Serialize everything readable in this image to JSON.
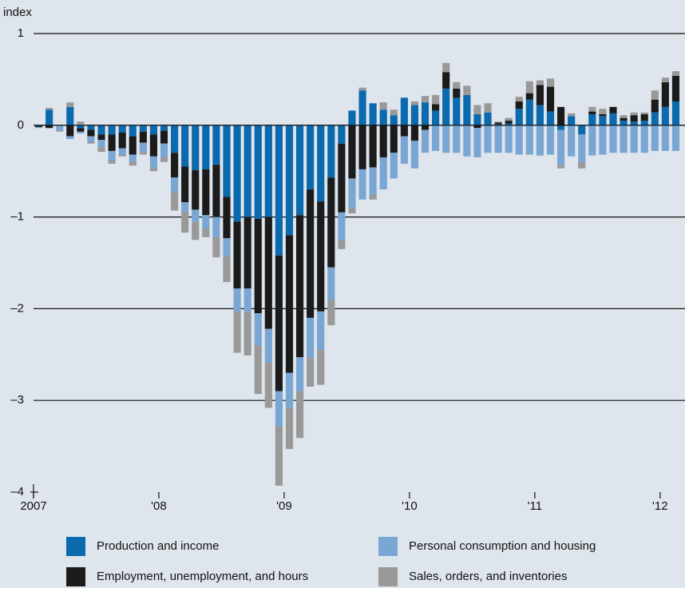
{
  "chart_data": {
    "type": "bar",
    "stacked": true,
    "y_axis_label": "index",
    "categories": [
      "2007",
      null,
      null,
      null,
      null,
      null,
      null,
      null,
      null,
      null,
      null,
      null,
      "'08",
      null,
      null,
      null,
      null,
      null,
      null,
      null,
      null,
      null,
      null,
      null,
      "'09",
      null,
      null,
      null,
      null,
      null,
      null,
      null,
      null,
      null,
      null,
      null,
      "'10",
      null,
      null,
      null,
      null,
      null,
      null,
      null,
      null,
      null,
      null,
      null,
      "'11",
      null,
      null,
      null,
      null,
      null,
      null,
      null,
      null,
      null,
      null,
      null,
      "'12",
      null
    ],
    "series": [
      {
        "name": "Production and income",
        "color": "#0a6aad",
        "values": [
          -0.01,
          0.17,
          0,
          0.2,
          -0.03,
          -0.05,
          -0.1,
          -0.1,
          -0.08,
          -0.12,
          -0.07,
          -0.1,
          -0.06,
          -0.3,
          -0.45,
          -0.49,
          -0.48,
          -0.43,
          -0.78,
          -1.05,
          -1.0,
          -1.02,
          -1.0,
          -1.42,
          -1.2,
          -0.98,
          -0.7,
          -0.83,
          -0.57,
          -0.2,
          0.16,
          0.38,
          0.24,
          0.17,
          0.11,
          0.3,
          0.22,
          0.25,
          0.16,
          0.4,
          0.3,
          0.33,
          0.12,
          0.14,
          0.01,
          0.02,
          0.18,
          0.28,
          0.22,
          0.15,
          -0.05,
          0.1,
          -0.1,
          0.12,
          0.1,
          0.13,
          0.05,
          0.04,
          0.05,
          0.14,
          0.2,
          0.26
        ]
      },
      {
        "name": "Employment, unemployment, and hours",
        "color": "#1b1b1b",
        "values": [
          -0.01,
          -0.03,
          0,
          -0.12,
          -0.04,
          -0.07,
          -0.06,
          -0.18,
          -0.17,
          -0.2,
          -0.12,
          -0.24,
          -0.14,
          -0.27,
          -0.39,
          -0.43,
          -0.5,
          -0.57,
          -0.45,
          -0.73,
          -0.78,
          -1.03,
          -1.22,
          -1.48,
          -1.5,
          -1.55,
          -1.4,
          -1.2,
          -0.98,
          -0.75,
          -0.58,
          -0.48,
          -0.46,
          -0.35,
          -0.3,
          -0.12,
          -0.17,
          -0.05,
          0.07,
          0.18,
          0.1,
          0,
          -0.03,
          0,
          0.02,
          0.03,
          0.08,
          0.07,
          0.22,
          0.27,
          0.2,
          0,
          0,
          0.03,
          0.02,
          0.07,
          0.03,
          0.07,
          0.07,
          0.14,
          0.27,
          0.28
        ]
      },
      {
        "name": "Personal consumption and housing",
        "color": "#7aa6d4",
        "values": [
          -0.01,
          0,
          -0.06,
          -0.03,
          -0.02,
          -0.06,
          -0.08,
          -0.1,
          -0.07,
          -0.08,
          -0.1,
          -0.12,
          -0.15,
          -0.16,
          -0.1,
          -0.13,
          -0.15,
          -0.22,
          -0.2,
          -0.25,
          -0.25,
          -0.35,
          -0.37,
          -0.38,
          -0.38,
          -0.37,
          -0.43,
          -0.42,
          -0.35,
          -0.3,
          -0.32,
          -0.33,
          -0.3,
          -0.35,
          -0.28,
          -0.3,
          -0.3,
          -0.25,
          -0.28,
          -0.3,
          -0.3,
          -0.34,
          -0.32,
          -0.3,
          -0.3,
          -0.3,
          -0.32,
          -0.32,
          -0.33,
          -0.32,
          -0.38,
          -0.34,
          -0.3,
          -0.33,
          -0.32,
          -0.3,
          -0.3,
          -0.3,
          -0.3,
          -0.28,
          -0.28,
          -0.28
        ]
      },
      {
        "name": "Sales, orders, and inventories",
        "color": "#999999",
        "values": [
          0,
          0.02,
          -0.01,
          0.05,
          0.04,
          -0.02,
          -0.05,
          -0.04,
          -0.02,
          -0.04,
          -0.03,
          -0.04,
          -0.05,
          -0.2,
          -0.23,
          -0.2,
          -0.09,
          -0.22,
          -0.28,
          -0.45,
          -0.48,
          -0.53,
          -0.49,
          -0.65,
          -0.45,
          -0.51,
          -0.32,
          -0.38,
          -0.28,
          -0.1,
          -0.06,
          0.03,
          -0.05,
          0.08,
          0.06,
          0,
          0.04,
          0.07,
          0.1,
          0.1,
          0.07,
          0.1,
          0.1,
          0.1,
          0.01,
          0.03,
          0.05,
          0.13,
          0.05,
          0.09,
          -0.04,
          0.03,
          -0.07,
          0.05,
          0.06,
          0,
          0.03,
          0.03,
          0.02,
          0.1,
          0.05,
          0.05
        ]
      }
    ],
    "ylim": [
      -4,
      1
    ],
    "yticks": [
      {
        "value": -4,
        "label": "–4"
      },
      {
        "value": -3,
        "label": "–3"
      },
      {
        "value": -2,
        "label": "–2"
      },
      {
        "value": -1,
        "label": "–1"
      },
      0,
      1
    ],
    "grid": true,
    "background": "#dfe5ec"
  }
}
